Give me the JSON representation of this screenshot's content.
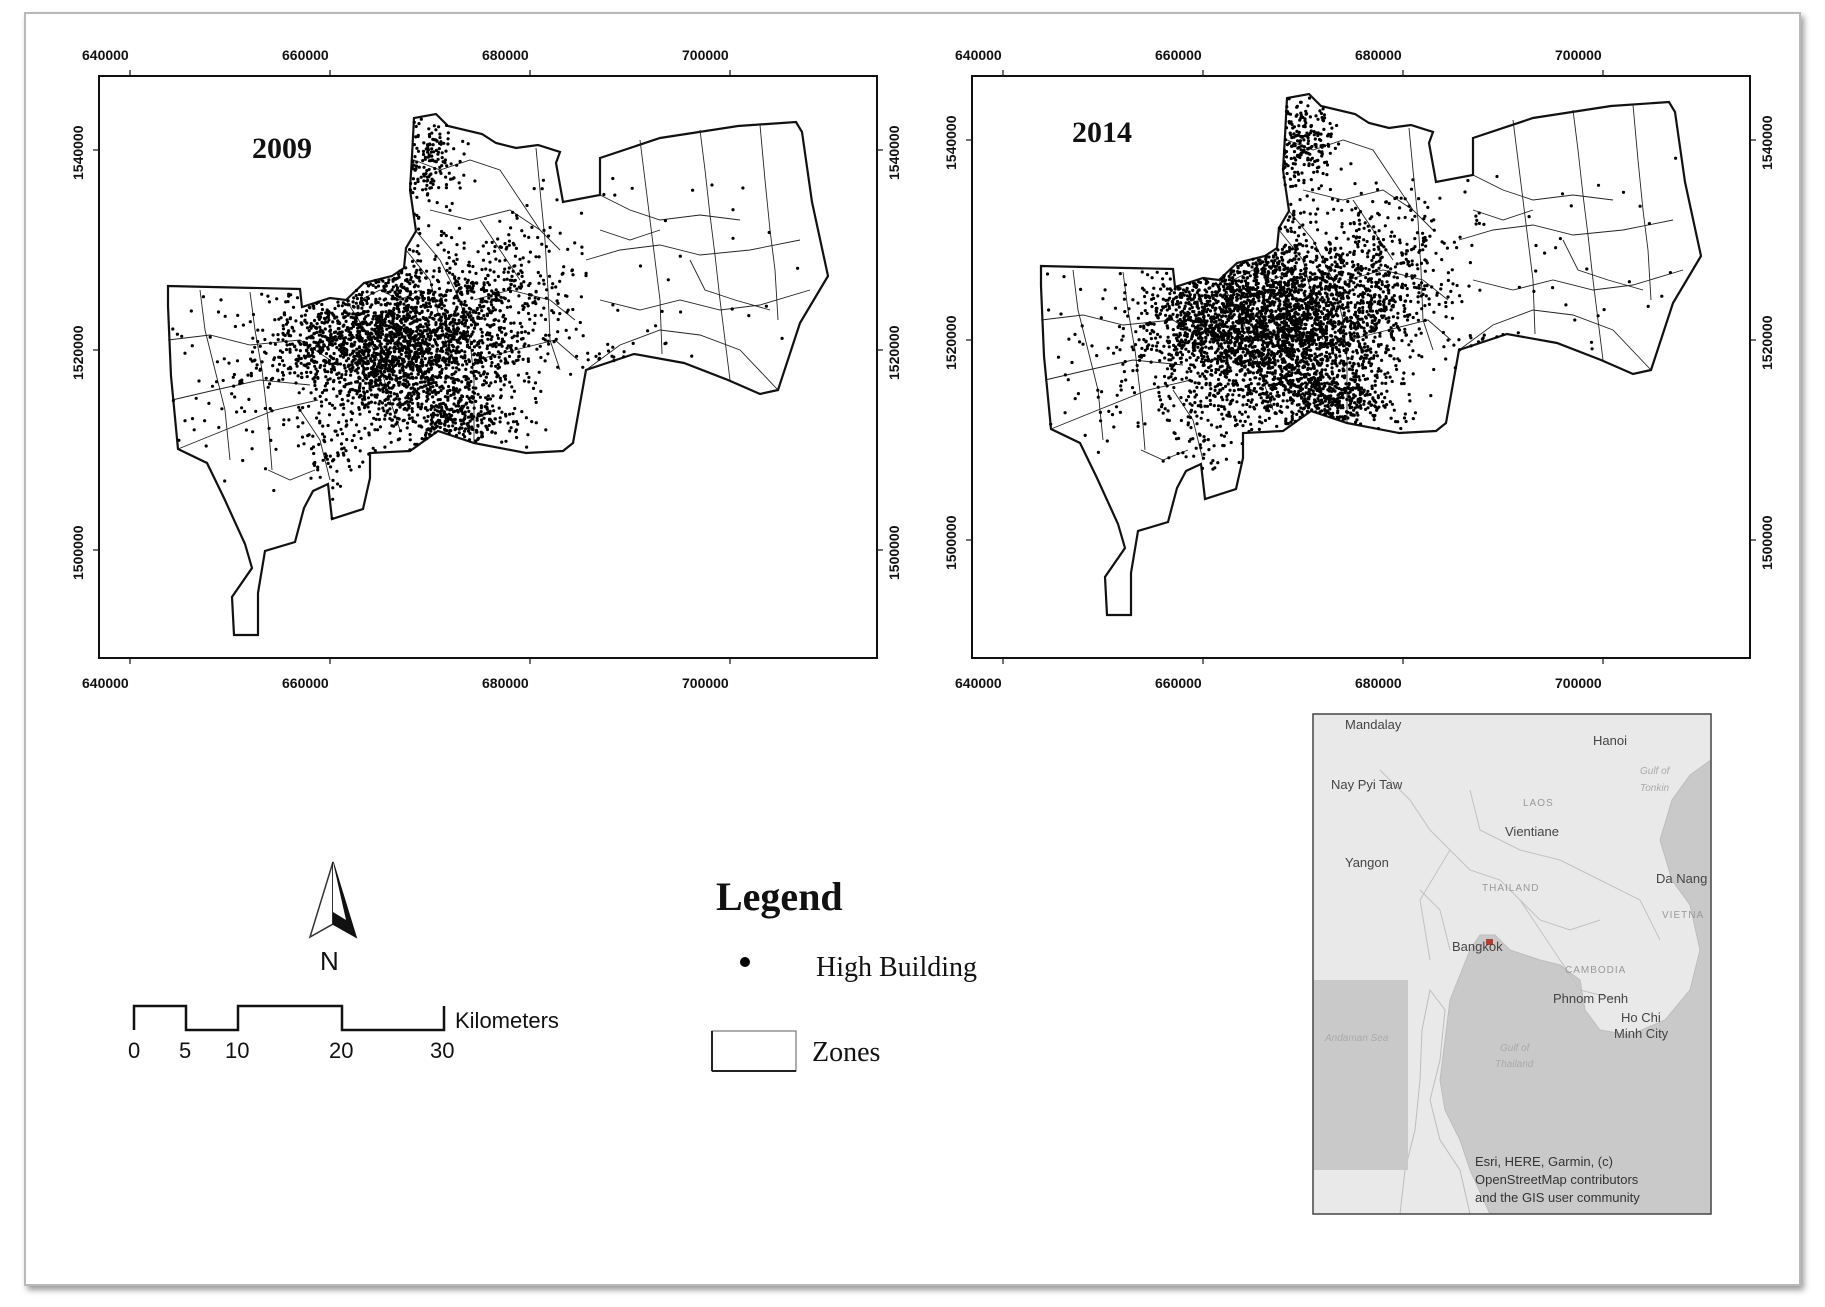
{
  "maps": [
    {
      "year": "2009",
      "x_ticks": [
        "640000",
        "660000",
        "680000",
        "700000"
      ],
      "y_ticks": [
        "1540000",
        "1520000",
        "1500000"
      ]
    },
    {
      "year": "2014",
      "x_ticks": [
        "640000",
        "660000",
        "680000",
        "700000"
      ],
      "y_ticks": [
        "1540000",
        "1520000",
        "1500000"
      ]
    }
  ],
  "legend": {
    "title": "Legend",
    "items": [
      {
        "label": "High Building",
        "symbol": "dot"
      },
      {
        "label": "Zones",
        "symbol": "polygon"
      }
    ]
  },
  "north_arrow": {
    "label": "N"
  },
  "scale_bar": {
    "unit": "Kilometers",
    "ticks": [
      "0",
      "5",
      "10",
      "20",
      "30"
    ]
  },
  "inset": {
    "places": [
      "Mandalay",
      "Hanoi",
      "Nay Pyi Taw",
      "Vientiane",
      "Yangon",
      "Bangkok",
      "Da Nang",
      "Phnom Penh",
      "Ho Chi",
      "Minh City"
    ],
    "regions": [
      "LAOS",
      "THAILAND",
      "CAMBODIA",
      "VIETNA"
    ],
    "seas": [
      "Gulf of",
      "Tonkin",
      "Andaman Sea",
      "Gulf of",
      "Thailand"
    ],
    "attribution": [
      "Esri, HERE, Garmin, (c)",
      "OpenStreetMap contributors",
      "and the GIS user community"
    ],
    "highlight_color": "#c0392b"
  },
  "colors": {
    "zone_stroke": "#111111",
    "building_dot": "#000000",
    "inset_land": "#e9e9e9",
    "inset_sea": "#c9c9c9"
  }
}
